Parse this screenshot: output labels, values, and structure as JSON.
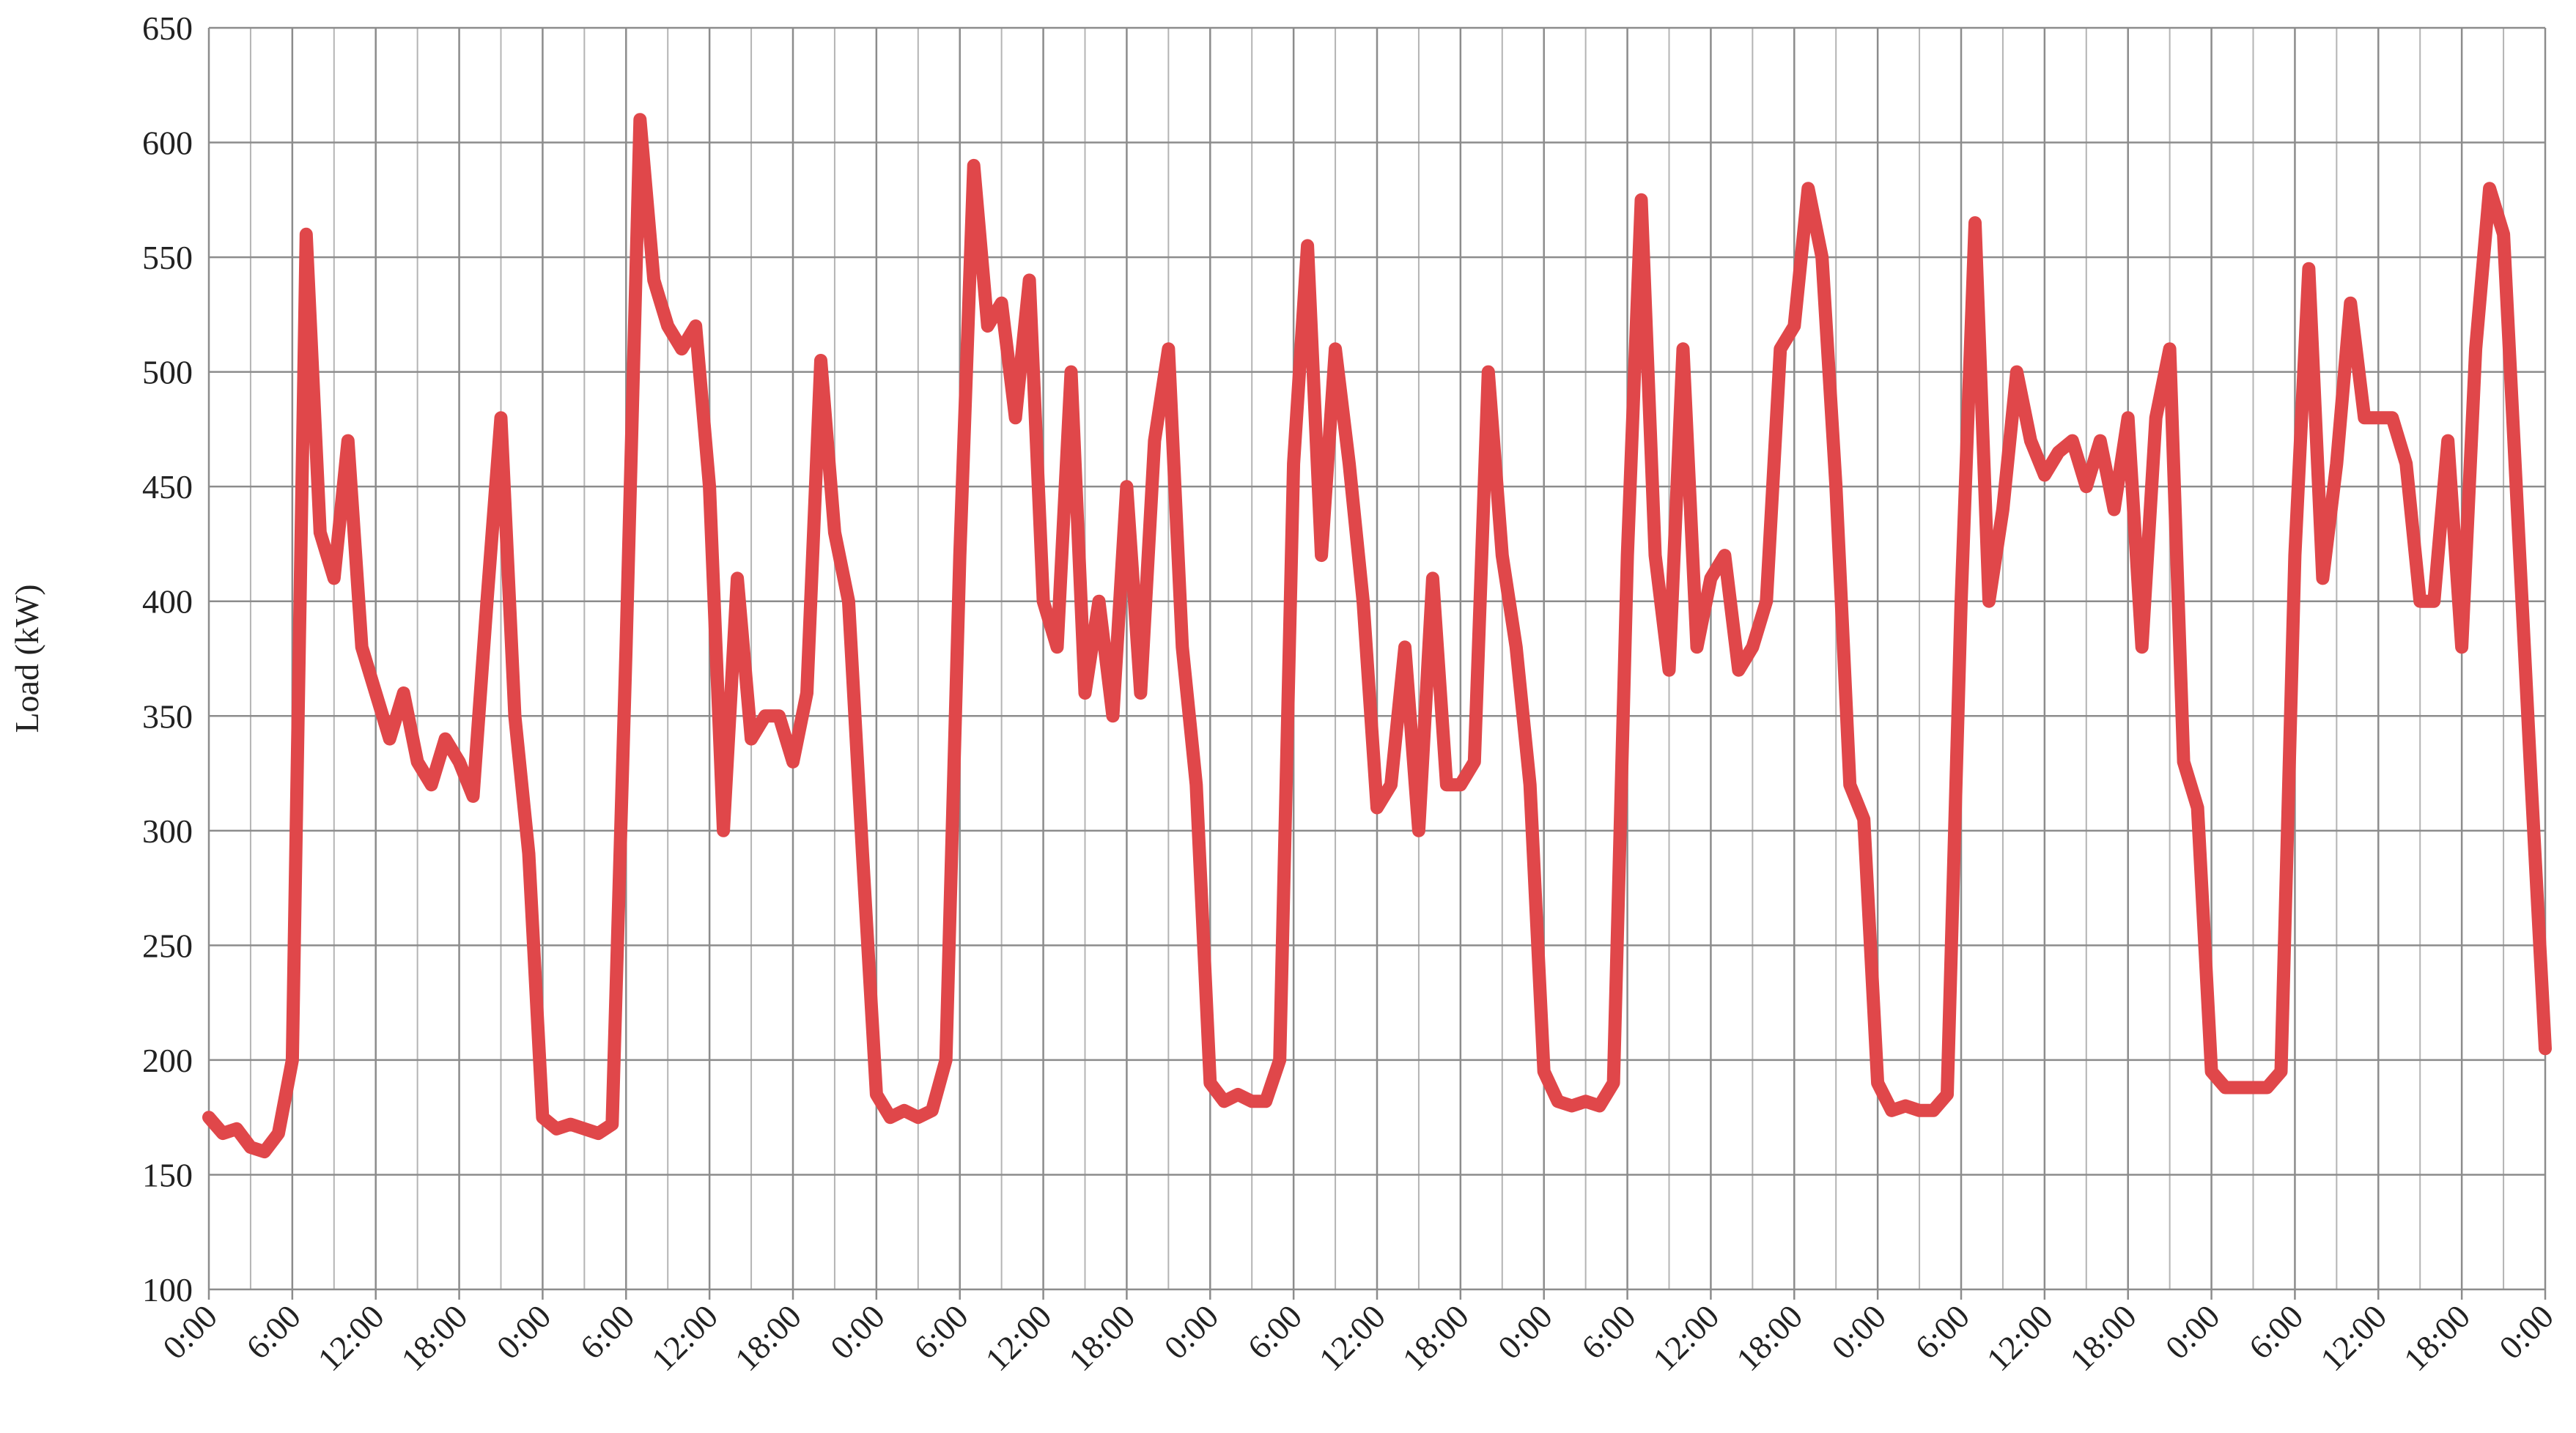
{
  "chart_data": {
    "type": "line",
    "y_label": "Load (kW)",
    "ylim": [
      100,
      650
    ],
    "yticks": [
      100,
      150,
      200,
      250,
      300,
      350,
      400,
      450,
      500,
      550,
      600,
      650
    ],
    "xlim": [
      0,
      168
    ],
    "xticks": [
      {
        "value": 0,
        "label": "0:00"
      },
      {
        "value": 6,
        "label": "6:00"
      },
      {
        "value": 12,
        "label": "12:00"
      },
      {
        "value": 18,
        "label": "18:00"
      },
      {
        "value": 24,
        "label": "0:00"
      },
      {
        "value": 30,
        "label": "6:00"
      },
      {
        "value": 36,
        "label": "12:00"
      },
      {
        "value": 42,
        "label": "18:00"
      },
      {
        "value": 48,
        "label": "0:00"
      },
      {
        "value": 54,
        "label": "6:00"
      },
      {
        "value": 60,
        "label": "12:00"
      },
      {
        "value": 66,
        "label": "18:00"
      },
      {
        "value": 72,
        "label": "0:00"
      },
      {
        "value": 78,
        "label": "6:00"
      },
      {
        "value": 84,
        "label": "12:00"
      },
      {
        "value": 90,
        "label": "18:00"
      },
      {
        "value": 96,
        "label": "0:00"
      },
      {
        "value": 102,
        "label": "6:00"
      },
      {
        "value": 108,
        "label": "12:00"
      },
      {
        "value": 114,
        "label": "18:00"
      },
      {
        "value": 120,
        "label": "0:00"
      },
      {
        "value": 126,
        "label": "6:00"
      },
      {
        "value": 132,
        "label": "12:00"
      },
      {
        "value": 138,
        "label": "18:00"
      },
      {
        "value": 144,
        "label": "0:00"
      },
      {
        "value": 150,
        "label": "6:00"
      },
      {
        "value": 156,
        "label": "12:00"
      },
      {
        "value": 162,
        "label": "18:00"
      },
      {
        "value": 168,
        "label": "0:00"
      }
    ],
    "grid": true,
    "color": "#e0474a",
    "x": [
      0,
      1,
      2,
      3,
      4,
      5,
      6,
      7,
      8,
      9,
      10,
      11,
      12,
      13,
      14,
      15,
      16,
      17,
      18,
      19,
      20,
      21,
      22,
      23,
      24,
      25,
      26,
      27,
      28,
      29,
      30,
      31,
      32,
      33,
      34,
      35,
      36,
      37,
      38,
      39,
      40,
      41,
      42,
      43,
      44,
      45,
      46,
      47,
      48,
      49,
      50,
      51,
      52,
      53,
      54,
      55,
      56,
      57,
      58,
      59,
      60,
      61,
      62,
      63,
      64,
      65,
      66,
      67,
      68,
      69,
      70,
      71,
      72,
      73,
      74,
      75,
      76,
      77,
      78,
      79,
      80,
      81,
      82,
      83,
      84,
      85,
      86,
      87,
      88,
      89,
      90,
      91,
      92,
      93,
      94,
      95,
      96,
      97,
      98,
      99,
      100,
      101,
      102,
      103,
      104,
      105,
      106,
      107,
      108,
      109,
      110,
      111,
      112,
      113,
      114,
      115,
      116,
      117,
      118,
      119,
      120,
      121,
      122,
      123,
      124,
      125,
      126,
      127,
      128,
      129,
      130,
      131,
      132,
      133,
      134,
      135,
      136,
      137,
      138,
      139,
      140,
      141,
      142,
      143,
      144,
      145,
      146,
      147,
      148,
      149,
      150,
      151,
      152,
      153,
      154,
      155,
      156,
      157,
      158,
      159,
      160,
      161,
      162,
      163,
      164,
      165,
      166,
      167,
      168
    ],
    "values": [
      175,
      168,
      170,
      162,
      160,
      168,
      200,
      560,
      430,
      410,
      470,
      380,
      360,
      340,
      360,
      330,
      320,
      340,
      330,
      315,
      400,
      480,
      350,
      290,
      175,
      170,
      172,
      170,
      168,
      172,
      380,
      610,
      540,
      520,
      510,
      520,
      450,
      300,
      410,
      340,
      350,
      350,
      330,
      360,
      505,
      430,
      400,
      290,
      185,
      175,
      178,
      175,
      178,
      200,
      420,
      590,
      520,
      530,
      480,
      540,
      400,
      380,
      500,
      360,
      400,
      350,
      450,
      360,
      470,
      510,
      380,
      320,
      190,
      182,
      185,
      182,
      182,
      200,
      460,
      555,
      420,
      510,
      460,
      400,
      310,
      320,
      380,
      300,
      410,
      320,
      320,
      330,
      500,
      420,
      380,
      320,
      195,
      182,
      180,
      182,
      180,
      190,
      420,
      575,
      420,
      370,
      510,
      380,
      410,
      420,
      370,
      380,
      400,
      510,
      520,
      580,
      550,
      450,
      320,
      305,
      190,
      178,
      180,
      178,
      178,
      185,
      400,
      565,
      400,
      440,
      500,
      470,
      455,
      465,
      470,
      450,
      470,
      440,
      480,
      380,
      480,
      510,
      330,
      310,
      195,
      188,
      188,
      188,
      188,
      195,
      420,
      545,
      410,
      460,
      530,
      480,
      480,
      480,
      460,
      400,
      400,
      470,
      380,
      510,
      580,
      560,
      440,
      320,
      205
    ]
  }
}
